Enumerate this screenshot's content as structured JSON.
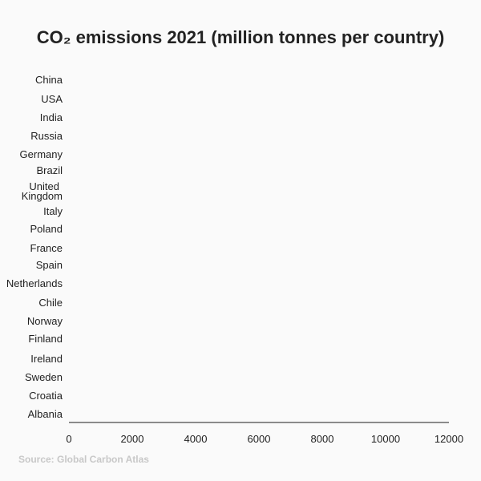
{
  "chart_data": {
    "type": "bar",
    "orientation": "horizontal",
    "title": "CO₂ emissions 2021 (million tonnes per country)",
    "categories": [
      "China",
      "USA",
      "India",
      "Russia",
      "Germany",
      "Brazil",
      "United Kingdom",
      "Italy",
      "Poland",
      "France",
      "Spain",
      "Netherlands",
      "Chile",
      "Norway",
      "Finland",
      "Ireland",
      "Sweden",
      "Croatia",
      "Albania"
    ],
    "values": [
      0,
      0,
      0,
      0,
      0,
      0,
      0,
      0,
      0,
      0,
      0,
      0,
      0,
      0,
      0,
      0,
      0,
      0,
      0
    ],
    "xlim": [
      0,
      12000
    ],
    "xticks": [
      "0",
      "2000",
      "4000",
      "6000",
      "8000",
      "10000",
      "12000"
    ],
    "xlabel": "",
    "ylabel": "",
    "grid": false,
    "colors": {
      "axis": "#666666",
      "bar": "#e05a2b",
      "text": "#222222",
      "source": "#c8c8c8"
    }
  },
  "source": "Source: Global Carbon Atlas"
}
